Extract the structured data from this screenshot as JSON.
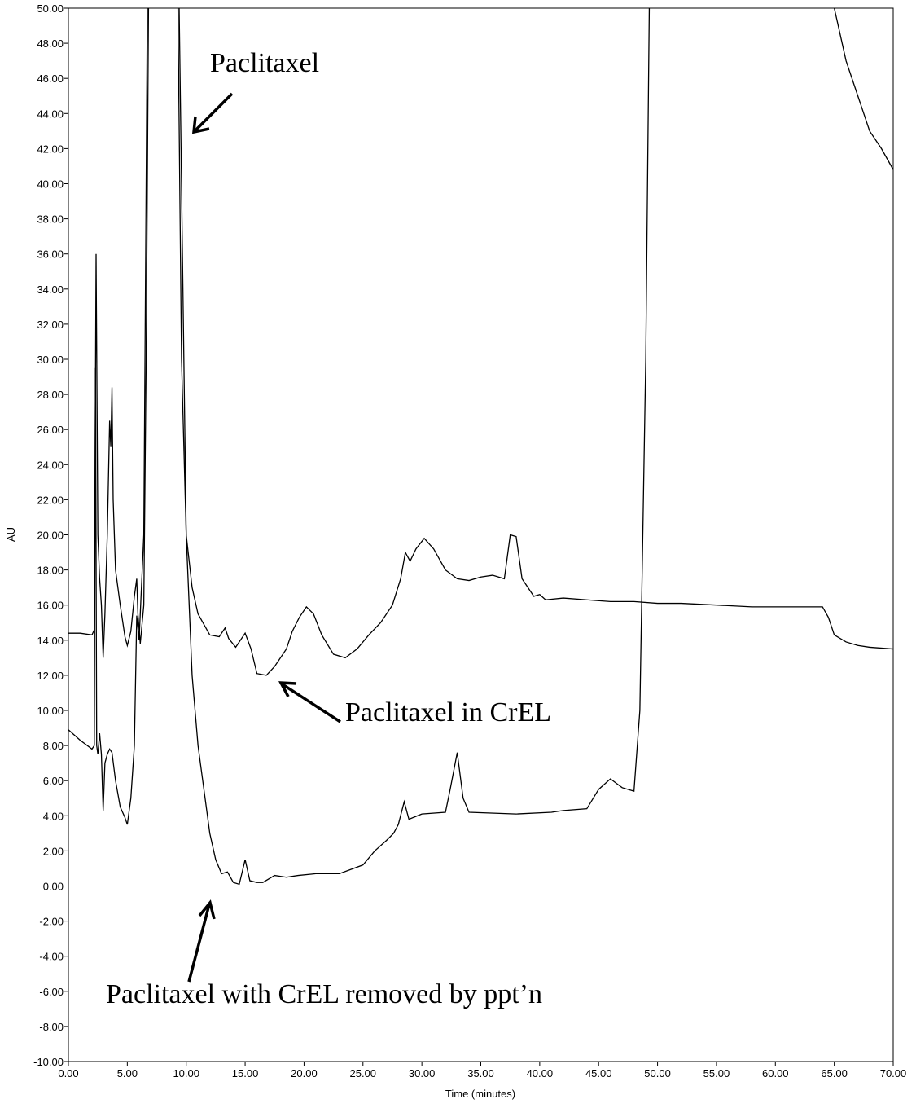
{
  "chart_data": {
    "type": "line",
    "xlabel": "Time (minutes)",
    "ylabel": "AU",
    "annotations": [
      "Paclitaxel",
      "Paclitaxel in CrEL",
      "Paclitaxel with CrEL removed by ppt’n"
    ],
    "xlim": [
      0,
      70
    ],
    "ylim": [
      -10,
      50
    ],
    "xticks": [
      {
        "value": 0,
        "label": "0.00"
      },
      {
        "value": 5,
        "label": "5.00"
      },
      {
        "value": 10,
        "label": "10.00"
      },
      {
        "value": 15,
        "label": "15.00"
      },
      {
        "value": 20,
        "label": "20.00"
      },
      {
        "value": 25,
        "label": "25.00"
      },
      {
        "value": 30,
        "label": "30.00"
      },
      {
        "value": 35,
        "label": "35.00"
      },
      {
        "value": 40,
        "label": "40.00"
      },
      {
        "value": 45,
        "label": "45.00"
      },
      {
        "value": 50,
        "label": "50.00"
      },
      {
        "value": 55,
        "label": "55.00"
      },
      {
        "value": 60,
        "label": "60.00"
      },
      {
        "value": 65,
        "label": "65.00"
      },
      {
        "value": 70,
        "label": "70.00"
      }
    ],
    "yticks": [
      {
        "value": -10,
        "label": "-10.00"
      },
      {
        "value": -8,
        "label": "-8.00"
      },
      {
        "value": -6,
        "label": "-6.00"
      },
      {
        "value": -4,
        "label": "-4.00"
      },
      {
        "value": -2,
        "label": "-2.00"
      },
      {
        "value": 0,
        "label": "0.00"
      },
      {
        "value": 2,
        "label": "2.00"
      },
      {
        "value": 4,
        "label": "4.00"
      },
      {
        "value": 6,
        "label": "6.00"
      },
      {
        "value": 8,
        "label": "8.00"
      },
      {
        "value": 10,
        "label": "10.00"
      },
      {
        "value": 12,
        "label": "12.00"
      },
      {
        "value": 14,
        "label": "14.00"
      },
      {
        "value": 16,
        "label": "16.00"
      },
      {
        "value": 18,
        "label": "18.00"
      },
      {
        "value": 20,
        "label": "20.00"
      },
      {
        "value": 22,
        "label": "22.00"
      },
      {
        "value": 24,
        "label": "24.00"
      },
      {
        "value": 26,
        "label": "26.00"
      },
      {
        "value": 28,
        "label": "28.00"
      },
      {
        "value": 30,
        "label": "30.00"
      },
      {
        "value": 32,
        "label": "32.00"
      },
      {
        "value": 34,
        "label": "34.00"
      },
      {
        "value": 36,
        "label": "36.00"
      },
      {
        "value": 38,
        "label": "38.00"
      },
      {
        "value": 40,
        "label": "40.00"
      },
      {
        "value": 42,
        "label": "42.00"
      },
      {
        "value": 44,
        "label": "44.00"
      },
      {
        "value": 46,
        "label": "46.00"
      },
      {
        "value": 48,
        "label": "48.00"
      },
      {
        "value": 50,
        "label": "50.00"
      }
    ],
    "grid": false,
    "series": [
      {
        "color": "#000000",
        "x": [
          0,
          1,
          2,
          2.2,
          2.35,
          2.5,
          2.65,
          2.8,
          2.95,
          3.1,
          3.3,
          3.5,
          3.6,
          3.7,
          3.8,
          4,
          4.4,
          4.8,
          5,
          5.3,
          5.6,
          5.8,
          5.9,
          6.1,
          6.4,
          6.6,
          6.8,
          7,
          9,
          9.3,
          9.6,
          10,
          10.5,
          11,
          12,
          12.8,
          13.3,
          13.6,
          14.2,
          15,
          15.5,
          16,
          16.8,
          17.5,
          18.5,
          19,
          19.6,
          20.2,
          20.8,
          21.5,
          22.5,
          23.5,
          24.5,
          25.5,
          26.5,
          27.5,
          28.2,
          28.6,
          29,
          29.5,
          30.2,
          31,
          32,
          33,
          34,
          35,
          36,
          37,
          37.5,
          38,
          38.5,
          39,
          39.5,
          40,
          40.5,
          42,
          44,
          46,
          48,
          50,
          52,
          55,
          58,
          61,
          64,
          64.5,
          65,
          66,
          67,
          68,
          70
        ],
        "values": [
          14.4,
          14.4,
          14.3,
          14.6,
          36,
          20,
          17.5,
          16,
          13,
          15.5,
          20,
          26.5,
          25,
          28.4,
          22,
          18,
          16,
          14.2,
          13.7,
          14.5,
          16.5,
          17.5,
          15.5,
          13.8,
          16,
          30,
          50,
          60,
          60,
          50,
          30,
          20,
          17,
          15.5,
          14.3,
          14.2,
          14.7,
          14.1,
          13.6,
          14.4,
          13.5,
          12.1,
          12,
          12.5,
          13.5,
          14.5,
          15.3,
          15.9,
          15.5,
          14.3,
          13.2,
          13,
          13.5,
          14.3,
          15,
          16,
          17.5,
          19,
          18.5,
          19.2,
          19.8,
          19.2,
          18,
          17.5,
          17.4,
          17.6,
          17.7,
          17.5,
          20,
          19.9,
          17.5,
          17,
          16.5,
          16.6,
          16.3,
          16.4,
          16.3,
          16.2,
          16.2,
          16.1,
          16.1,
          16,
          15.9,
          15.9,
          15.9,
          15.3,
          14.3,
          13.9,
          13.7,
          13.6,
          13.5
        ]
      },
      {
        "color": "#000000",
        "x": [
          0,
          1,
          2,
          2.2,
          2.3,
          2.4,
          2.5,
          2.65,
          2.8,
          2.95,
          3.1,
          3.3,
          3.5,
          3.7,
          4,
          4.4,
          4.8,
          5,
          5.3,
          5.6,
          5.8,
          6,
          6.4,
          6.7,
          7,
          9.2,
          9.6,
          10,
          10.5,
          11,
          11.5,
          12,
          12.5,
          13,
          13.5,
          14,
          14.5,
          15,
          15.4,
          16,
          16.5,
          17.5,
          18.5,
          19.5,
          21,
          23,
          25,
          26,
          27,
          27.6,
          28,
          28.5,
          28.9,
          30,
          32,
          32.4,
          33,
          33.5,
          34,
          38,
          41,
          42,
          44,
          45,
          46,
          47,
          48,
          48.5,
          49,
          49.3,
          49.6,
          57,
          65,
          66,
          67,
          68,
          69,
          70
        ],
        "values": [
          8.9,
          8.3,
          7.8,
          8,
          29.5,
          8,
          7.5,
          8.7,
          7.5,
          4.3,
          7,
          7.5,
          7.8,
          7.6,
          6,
          4.5,
          3.9,
          3.5,
          5,
          8,
          15.4,
          14,
          20,
          50,
          60,
          60,
          40,
          20,
          12,
          8,
          5.5,
          3,
          1.5,
          0.7,
          0.8,
          0.2,
          0.1,
          1.5,
          0.3,
          0.2,
          0.2,
          0.6,
          0.5,
          0.6,
          0.7,
          0.7,
          1.2,
          2,
          2.6,
          3,
          3.5,
          4.8,
          3.8,
          4.1,
          4.2,
          5.5,
          7.6,
          5,
          4.2,
          4.1,
          4.2,
          4.3,
          4.4,
          5.5,
          6.1,
          5.6,
          5.4,
          10,
          30,
          50,
          60,
          null,
          50,
          47,
          45,
          43,
          42,
          40.8
        ]
      }
    ]
  }
}
